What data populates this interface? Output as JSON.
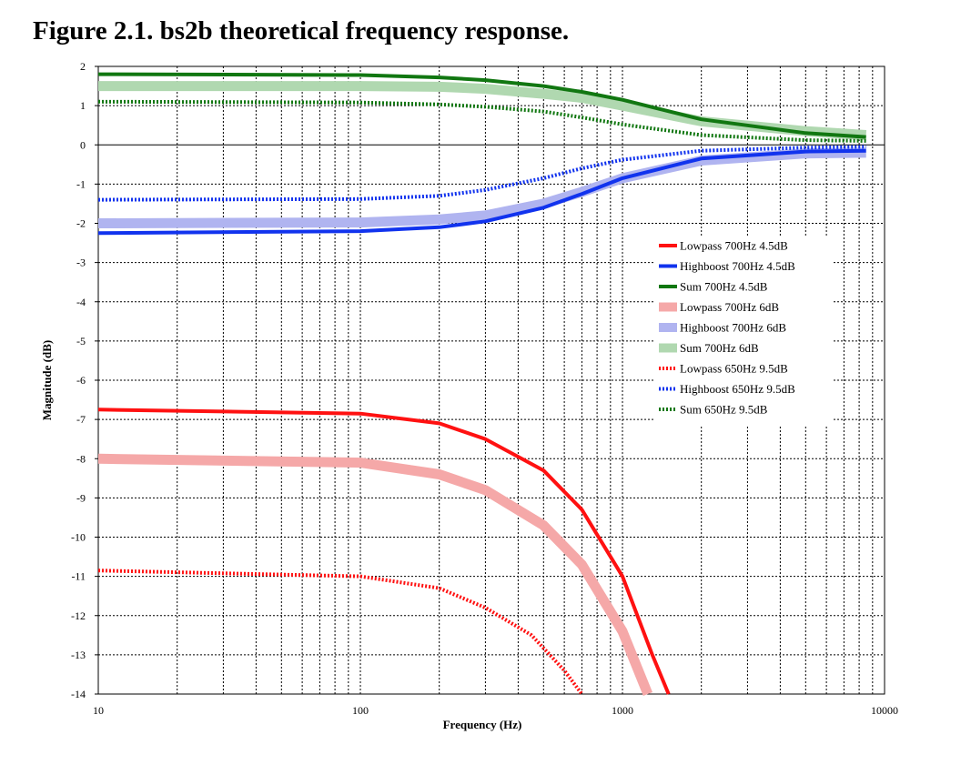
{
  "figure_title": "Figure 2.1. bs2b theoretical frequency response.",
  "chart_data": {
    "type": "line",
    "xlabel": "Frequency (Hz)",
    "ylabel": "Magnitude (dB)",
    "x_scale": "log",
    "xlim": [
      10,
      10000
    ],
    "ylim": [
      -14,
      2
    ],
    "x_ticks": [
      "10",
      "100",
      "1000",
      "10000"
    ],
    "y_ticks": [
      "2",
      "1",
      "0",
      "-1",
      "-2",
      "-3",
      "-4",
      "-5",
      "-6",
      "-7",
      "-8",
      "-9",
      "-10",
      "-11",
      "-12",
      "-13",
      "-14"
    ],
    "grid": true,
    "legend_position": "right-middle",
    "series": [
      {
        "name": "Lowpass 700Hz 4.5dB",
        "color": "#ff1111",
        "style": "solid-thin",
        "x": [
          10,
          100,
          200,
          300,
          500,
          700,
          1000,
          1300,
          1500
        ],
        "y": [
          -6.75,
          -6.85,
          -7.1,
          -7.5,
          -8.3,
          -9.3,
          -11.0,
          -13.0,
          -14.3
        ]
      },
      {
        "name": "Highboost 700Hz 4.5dB",
        "color": "#1133ee",
        "style": "solid-thin",
        "x": [
          10,
          100,
          200,
          300,
          500,
          700,
          1000,
          2000,
          5000,
          8500
        ],
        "y": [
          -2.25,
          -2.2,
          -2.1,
          -1.95,
          -1.6,
          -1.25,
          -0.85,
          -0.35,
          -0.17,
          -0.15
        ]
      },
      {
        "name": "Sum 700Hz 4.5dB",
        "color": "#117711",
        "style": "solid-thin",
        "x": [
          10,
          100,
          200,
          300,
          500,
          700,
          1000,
          2000,
          5000,
          8500
        ],
        "y": [
          1.8,
          1.78,
          1.72,
          1.65,
          1.5,
          1.35,
          1.15,
          0.65,
          0.3,
          0.2
        ]
      },
      {
        "name": "Lowpass 700Hz 6dB",
        "color": "#f5a8a8",
        "style": "solid-thick",
        "x": [
          10,
          100,
          200,
          300,
          500,
          700,
          1000,
          1250
        ],
        "y": [
          -8.0,
          -8.1,
          -8.4,
          -8.8,
          -9.7,
          -10.7,
          -12.4,
          -14.2
        ]
      },
      {
        "name": "Highboost 700Hz 6dB",
        "color": "#b0b4f0",
        "style": "solid-thick",
        "x": [
          10,
          100,
          200,
          300,
          500,
          700,
          1000,
          2000,
          5000,
          8500
        ],
        "y": [
          -2.0,
          -1.98,
          -1.9,
          -1.8,
          -1.5,
          -1.2,
          -0.85,
          -0.4,
          -0.22,
          -0.2
        ]
      },
      {
        "name": "Sum 700Hz 6dB",
        "color": "#b0d8b0",
        "style": "solid-thick",
        "x": [
          10,
          100,
          200,
          300,
          500,
          700,
          1000,
          2000,
          5000,
          8500
        ],
        "y": [
          1.5,
          1.5,
          1.48,
          1.43,
          1.3,
          1.2,
          1.0,
          0.6,
          0.35,
          0.25
        ]
      },
      {
        "name": "Lowpass 650Hz 9.5dB",
        "color": "#ff1111",
        "style": "dotted",
        "x": [
          10,
          100,
          200,
          300,
          450,
          600,
          700
        ],
        "y": [
          -10.85,
          -11.0,
          -11.3,
          -11.8,
          -12.5,
          -13.4,
          -14.0
        ]
      },
      {
        "name": "Highboost 650Hz 9.5dB",
        "color": "#1133ee",
        "style": "dotted",
        "x": [
          10,
          100,
          200,
          300,
          500,
          700,
          1000,
          2000,
          5000,
          8500
        ],
        "y": [
          -1.4,
          -1.38,
          -1.3,
          -1.15,
          -0.85,
          -0.6,
          -0.38,
          -0.15,
          -0.07,
          -0.05
        ]
      },
      {
        "name": "Sum 650Hz 9.5dB",
        "color": "#117711",
        "style": "dotted",
        "x": [
          10,
          100,
          200,
          300,
          500,
          700,
          1000,
          2000,
          5000,
          8500
        ],
        "y": [
          1.1,
          1.08,
          1.03,
          0.97,
          0.85,
          0.7,
          0.52,
          0.25,
          0.12,
          0.1
        ]
      }
    ]
  }
}
